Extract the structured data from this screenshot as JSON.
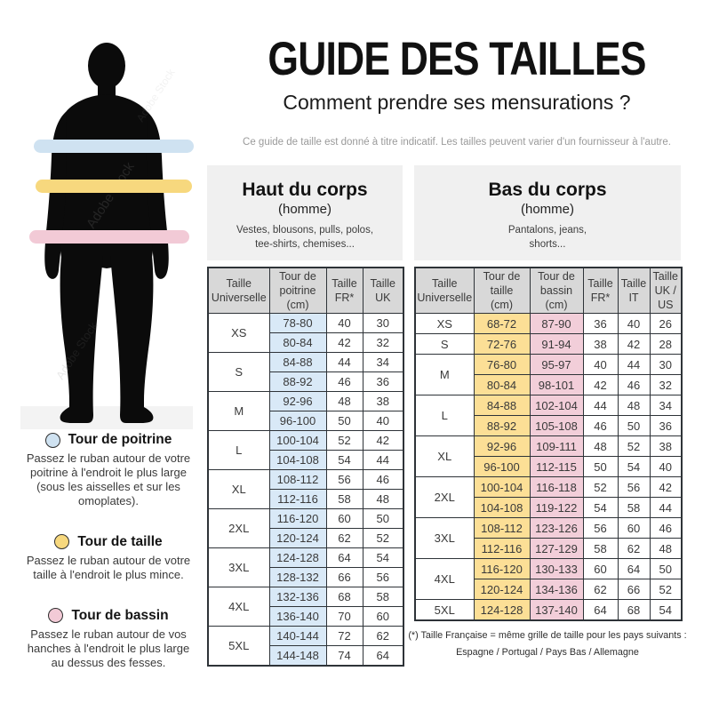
{
  "watermark": "Adobe Stock",
  "header": {
    "title": "GUIDE DES TAILLES",
    "subtitle": "Comment prendre ses mensurations ?",
    "disclaimer": "Ce guide de taille est donné à titre indicatif. Les tailles peuvent varier d'un fournisseur à l'autre."
  },
  "legend": {
    "items": [
      {
        "name": "Tour de poitrine",
        "color": "#cfe2f1",
        "description": "Passez le ruban autour de votre\npoitrine à l'endroit le plus large\n(sous les aisselles et sur les\nomoplates)."
      },
      {
        "name": "Tour de taille",
        "color": "#f7d87e",
        "description": "Passez le ruban autour de votre\ntaille à l'endroit le plus mince."
      },
      {
        "name": "Tour de bassin",
        "color": "#f2cad6",
        "description": "Passez le ruban autour de vos\nhanches à l'endroit le plus large\nau dessus des fesses."
      }
    ]
  },
  "upper_table": {
    "panel": {
      "title": "Haut du corps",
      "subtitle": "(homme)",
      "items": "Vestes, blousons, pulls, polos,\ntee-shirts, chemises..."
    },
    "columns": [
      "Taille\nUniverselle",
      "Tour de\npoitrine\n(cm)",
      "Taille\nFR*",
      "Taille\nUK"
    ],
    "highlight_color": "#d9e9f7",
    "groups": [
      {
        "size": "XS",
        "rows": [
          [
            "78-80",
            "40",
            "30"
          ],
          [
            "80-84",
            "42",
            "32"
          ]
        ]
      },
      {
        "size": "S",
        "rows": [
          [
            "84-88",
            "44",
            "34"
          ],
          [
            "88-92",
            "46",
            "36"
          ]
        ]
      },
      {
        "size": "M",
        "rows": [
          [
            "92-96",
            "48",
            "38"
          ],
          [
            "96-100",
            "50",
            "40"
          ]
        ]
      },
      {
        "size": "L",
        "rows": [
          [
            "100-104",
            "52",
            "42"
          ],
          [
            "104-108",
            "54",
            "44"
          ]
        ]
      },
      {
        "size": "XL",
        "rows": [
          [
            "108-112",
            "56",
            "46"
          ],
          [
            "112-116",
            "58",
            "48"
          ]
        ]
      },
      {
        "size": "2XL",
        "rows": [
          [
            "116-120",
            "60",
            "50"
          ],
          [
            "120-124",
            "62",
            "52"
          ]
        ]
      },
      {
        "size": "3XL",
        "rows": [
          [
            "124-128",
            "64",
            "54"
          ],
          [
            "128-132",
            "66",
            "56"
          ]
        ]
      },
      {
        "size": "4XL",
        "rows": [
          [
            "132-136",
            "68",
            "58"
          ],
          [
            "136-140",
            "70",
            "60"
          ]
        ]
      },
      {
        "size": "5XL",
        "rows": [
          [
            "140-144",
            "72",
            "62"
          ],
          [
            "144-148",
            "74",
            "64"
          ]
        ]
      }
    ]
  },
  "lower_table": {
    "panel": {
      "title": "Bas du corps",
      "subtitle": "(homme)",
      "items": "Pantalons, jeans,\nshorts..."
    },
    "columns": [
      "Taille\nUniverselle",
      "Tour de\ntaille\n(cm)",
      "Tour de\nbassin\n(cm)",
      "Taille\nFR*",
      "Taille\nIT",
      "Taille\nUK /\nUS"
    ],
    "waist_color": "#fcdf96",
    "hip_color": "#f2ced9",
    "groups": [
      {
        "size": "XS",
        "rows": [
          [
            "68-72",
            "87-90",
            "36",
            "40",
            "26"
          ]
        ]
      },
      {
        "size": "S",
        "rows": [
          [
            "72-76",
            "91-94",
            "38",
            "42",
            "28"
          ]
        ]
      },
      {
        "size": "M",
        "rows": [
          [
            "76-80",
            "95-97",
            "40",
            "44",
            "30"
          ],
          [
            "80-84",
            "98-101",
            "42",
            "46",
            "32"
          ]
        ]
      },
      {
        "size": "L",
        "rows": [
          [
            "84-88",
            "102-104",
            "44",
            "48",
            "34"
          ],
          [
            "88-92",
            "105-108",
            "46",
            "50",
            "36"
          ]
        ]
      },
      {
        "size": "XL",
        "rows": [
          [
            "92-96",
            "109-111",
            "48",
            "52",
            "38"
          ],
          [
            "96-100",
            "112-115",
            "50",
            "54",
            "40"
          ]
        ]
      },
      {
        "size": "2XL",
        "rows": [
          [
            "100-104",
            "116-118",
            "52",
            "56",
            "42"
          ],
          [
            "104-108",
            "119-122",
            "54",
            "58",
            "44"
          ]
        ]
      },
      {
        "size": "3XL",
        "rows": [
          [
            "108-112",
            "123-126",
            "56",
            "60",
            "46"
          ],
          [
            "112-116",
            "127-129",
            "58",
            "62",
            "48"
          ]
        ]
      },
      {
        "size": "4XL",
        "rows": [
          [
            "116-120",
            "130-133",
            "60",
            "64",
            "50"
          ],
          [
            "120-124",
            "134-136",
            "62",
            "66",
            "52"
          ]
        ]
      },
      {
        "size": "5XL",
        "rows": [
          [
            "124-128",
            "137-140",
            "64",
            "68",
            "54"
          ]
        ]
      }
    ]
  },
  "footnote": {
    "line1": "(*) Taille Française = même grille de taille pour les pays suivants :",
    "line2": "Espagne / Portugal / Pays Bas / Allemagne"
  }
}
